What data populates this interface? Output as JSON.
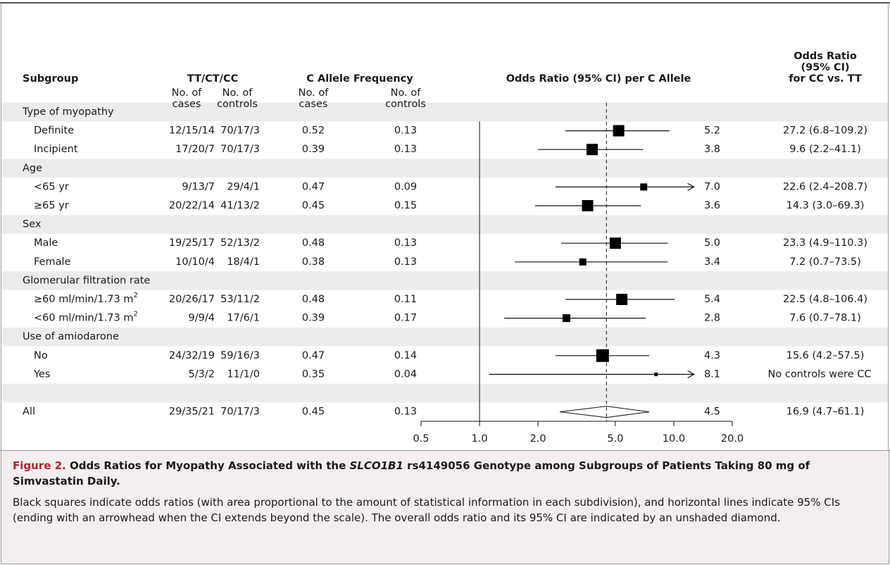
{
  "chart_data": {
    "type": "forest",
    "headers": {
      "subgroup": "Subgroup",
      "genotype": "TT/CT/CC",
      "allele": "C Allele Frequency",
      "forest": "Odds Ratio (95% CI) per C Allele",
      "or_cc": [
        "Odds Ratio",
        "(95% CI)",
        "for CC vs. TT"
      ]
    },
    "subheaders": [
      [
        "No. of",
        "cases"
      ],
      [
        "No. of",
        "controls"
      ],
      [
        "No. of",
        "cases"
      ],
      [
        "No. of",
        "controls"
      ]
    ],
    "rows": [
      {
        "label": "Type of myopathy",
        "group": true
      },
      {
        "label": "Definite",
        "genotype": [
          "12/15/14",
          "70/17/3"
        ],
        "freq": [
          0.52,
          0.13
        ],
        "or": 5.2,
        "ci": [
          2.77,
          9.5
        ],
        "weight": 16,
        "or_cc": "27.2 (6.8–109.2)"
      },
      {
        "label": "Incipient",
        "genotype": [
          "17/20/7",
          "70/17/3"
        ],
        "freq": [
          0.39,
          0.13
        ],
        "or": 3.8,
        "ci": [
          2.0,
          6.95
        ],
        "weight": 16,
        "or_cc": "9.6 (2.2–41.1)"
      },
      {
        "label": "Age",
        "group": true
      },
      {
        "label": "<65 yr",
        "genotype": [
          "9/13/7",
          "29/4/1"
        ],
        "freq": [
          0.47,
          0.09
        ],
        "or": 7.0,
        "or_label": "7.0",
        "ci": [
          2.46,
          12.7
        ],
        "arrow": true,
        "weight": 10,
        "or_cc": "22.6 (2.4–208.7)"
      },
      {
        "label": "≥65 yr",
        "genotype": [
          "20/22/14",
          "41/13/2"
        ],
        "freq": [
          0.45,
          0.15
        ],
        "or": 3.6,
        "ci": [
          1.93,
          6.77
        ],
        "weight": 16,
        "or_cc": "14.3 (3.0–69.3)"
      },
      {
        "label": "Sex",
        "group": true
      },
      {
        "label": "Male",
        "genotype": [
          "19/25/17",
          "52/13/2"
        ],
        "freq": [
          0.48,
          0.13
        ],
        "or": 5.0,
        "or_label": "5.0",
        "ci": [
          2.63,
          9.3
        ],
        "weight": 16,
        "or_cc": "23.3 (4.9–110.3)"
      },
      {
        "label": "Female",
        "genotype": [
          "10/10/4",
          "18/4/1"
        ],
        "freq": [
          0.38,
          0.13
        ],
        "or": 3.4,
        "ci": [
          1.52,
          9.3
        ],
        "weight": 10,
        "or_cc": "7.2 (0.7–73.5)"
      },
      {
        "label": "Glomerular filtration rate",
        "group": true
      },
      {
        "label": "≥60 ml/min/1.73 m",
        "sup": "2",
        "genotype": [
          "20/26/17",
          "53/11/2"
        ],
        "freq": [
          0.48,
          0.11
        ],
        "or": 5.4,
        "ci": [
          2.77,
          10.1
        ],
        "weight": 16,
        "or_cc": "22.5 (4.8–106.4)"
      },
      {
        "label": "<60 ml/min/1.73 m",
        "sup": "2",
        "genotype": [
          "9/9/4",
          "17/6/1"
        ],
        "freq": [
          0.39,
          0.17
        ],
        "or": 2.8,
        "ci": [
          1.34,
          7.17
        ],
        "weight": 11,
        "or_cc": "7.6 (0.7–78.1)"
      },
      {
        "label": "Use of amiodarone",
        "group": true
      },
      {
        "label": "No",
        "genotype": [
          "24/32/19",
          "59/16/3"
        ],
        "freq": [
          0.47,
          0.14
        ],
        "or": 4.3,
        "ci": [
          2.46,
          7.47
        ],
        "weight": 18,
        "or_cc": "15.6 (4.2–57.5)"
      },
      {
        "label": "Yes",
        "genotype": [
          "5/3/2",
          "11/1/0"
        ],
        "freq": [
          0.35,
          0.04
        ],
        "or": 8.1,
        "ci": [
          1.12,
          12.7
        ],
        "arrow": true,
        "weight": 5,
        "or_cc": "No controls were CC"
      },
      {
        "label": "All",
        "genotype": [
          "29/35/21",
          "70/17/3"
        ],
        "freq": [
          0.45,
          0.13
        ],
        "or": 4.5,
        "ci": [
          2.59,
          7.47
        ],
        "summary": true,
        "or_cc": "16.9 (4.7–61.1)"
      }
    ],
    "log_scale": true,
    "reference": 1,
    "xlim": [
      0.5,
      20
    ],
    "xticks": [
      0.5,
      {
        "value": 1,
        "label": "1.0"
      },
      {
        "value": 2,
        "label": "2.0"
      },
      {
        "value": 5,
        "label": "5.0"
      },
      {
        "value": 10,
        "label": "10.0"
      },
      {
        "value": 20,
        "label": "20.0"
      }
    ],
    "caption": {
      "label": "Figure 2.",
      "title": [
        "Odds Ratios for Myopathy Associated with the ",
        "SLCO1B1",
        " rs4149056 Genotype among Subgroups of Patients Taking 80 mg of Simvastatin Daily."
      ],
      "text": "Black squares indicate odds ratios (with area proportional to the amount of statistical information in each subdivision), and horizontal lines indicate 95% CIs (ending with an arrowhead when the CI extends beyond the scale). The overall odds ratio and its 95% CI are indicated by an unshaded diamond."
    }
  }
}
